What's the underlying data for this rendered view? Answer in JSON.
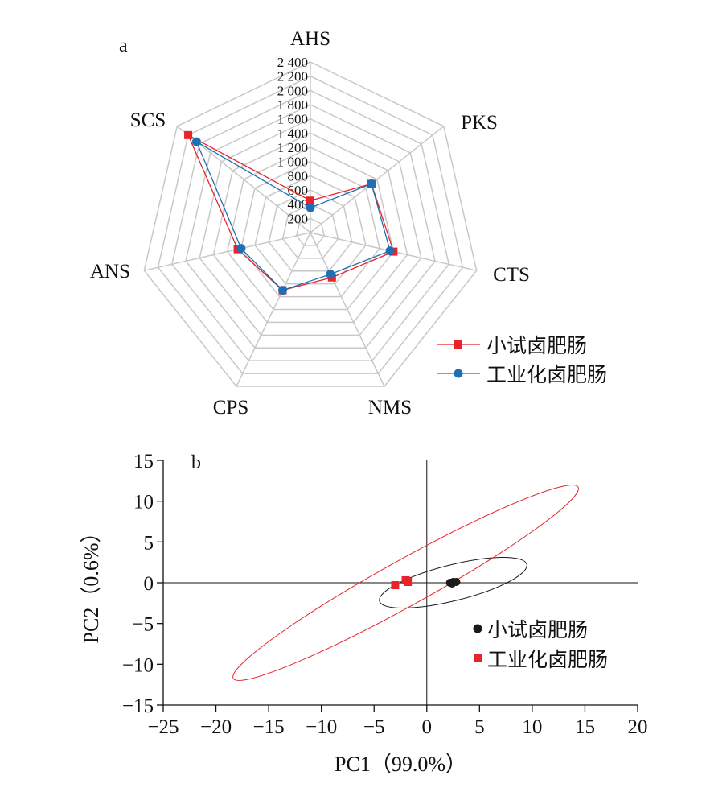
{
  "chart_data": [
    {
      "panel": "a",
      "type": "radar",
      "axes": [
        "AHS",
        "PKS",
        "CTS",
        "NMS",
        "CPS",
        "ANS",
        "SCS"
      ],
      "r_ticks": [
        "200",
        "400",
        "600",
        "800",
        "1 000",
        "1 200",
        "1 400",
        "1 600",
        "1 800",
        "2 000",
        "2 200",
        "2 400"
      ],
      "r_range": [
        0,
        2400
      ],
      "grid": true,
      "legend_position": "bottom-right",
      "series": [
        {
          "name": "小试卤肥肠",
          "color": "#e8232a",
          "marker": "square",
          "values": [
            450,
            1100,
            1200,
            700,
            900,
            1050,
            2200
          ]
        },
        {
          "name": "工业化卤肥肠",
          "color": "#1f6fb5",
          "marker": "circle",
          "values": [
            350,
            1100,
            1150,
            650,
            900,
            1000,
            2050
          ]
        }
      ]
    },
    {
      "panel": "b",
      "type": "scatter",
      "xlabel": "PC1（99.0%）",
      "ylabel": "PC2（0.6%）",
      "xlim": [
        -25,
        20
      ],
      "ylim": [
        -15,
        15
      ],
      "x_ticks": [
        "−25",
        "−20",
        "−15",
        "−10",
        "−5",
        "0",
        "5",
        "10",
        "15",
        "20"
      ],
      "y_ticks": [
        "15",
        "10",
        "5",
        "0",
        "−5",
        "−10",
        "−15"
      ],
      "legend_position": "right",
      "series": [
        {
          "name": "小试卤肥肠",
          "color": "#1a1a1a",
          "marker": "circle",
          "points": [
            [
              2.2,
              0.0
            ],
            [
              2.5,
              0.1
            ],
            [
              2.8,
              0.1
            ],
            [
              2.4,
              -0.1
            ]
          ],
          "ellipse": {
            "cx": 2.5,
            "cy": 0.0,
            "rx": 7.2,
            "ry": 2.2,
            "angle_deg": 14
          }
        },
        {
          "name": "工业化卤肥肠",
          "color": "#e8232a",
          "marker": "square",
          "points": [
            [
              -3.0,
              -0.3
            ],
            [
              -2.0,
              0.3
            ],
            [
              -1.8,
              0.1
            ]
          ],
          "ellipse": {
            "cx": -2.0,
            "cy": 0.0,
            "rx": 18.7,
            "ry": 2.8,
            "angle_deg": 29
          }
        }
      ]
    }
  ]
}
